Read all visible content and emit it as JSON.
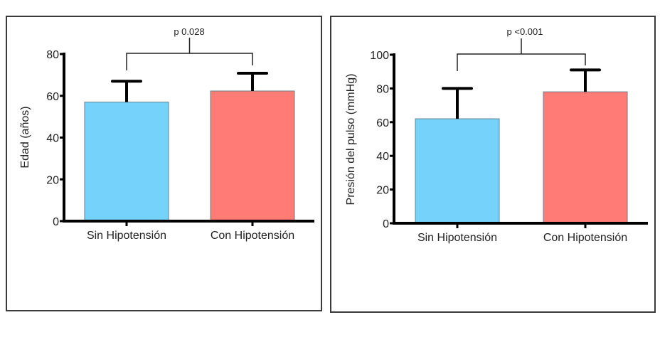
{
  "chart_data": [
    {
      "type": "bar",
      "title": "",
      "xlabel": "",
      "ylabel": "Edad (años)",
      "categories": [
        "Sin Hipotensión",
        "Con Hipotensión"
      ],
      "values": [
        57,
        62.3
      ],
      "error_upper": [
        67,
        70.8
      ],
      "colors": [
        "#75D3FB",
        "#FF7B76"
      ],
      "ylim": [
        0,
        80
      ],
      "yticks": [
        0,
        20,
        40,
        60,
        80
      ],
      "ytick_labels": [
        "0",
        "20",
        "40",
        "60",
        "80"
      ],
      "grid": false,
      "significance": {
        "label": "p 0.028",
        "between": [
          0,
          1
        ]
      }
    },
    {
      "type": "bar",
      "title": "",
      "xlabel": "",
      "ylabel": "Presión del pulso (mmHg)",
      "categories": [
        "Sin Hipotensión",
        "Con Hipotensión"
      ],
      "values": [
        62,
        78
      ],
      "error_upper": [
        80,
        91
      ],
      "colors": [
        "#75D3FB",
        "#FF7B76"
      ],
      "ylim": [
        0,
        100
      ],
      "yticks": [
        0,
        20,
        40,
        60,
        80,
        100
      ],
      "ytick_labels": [
        "0",
        "20",
        "40",
        "60",
        "80",
        "100"
      ],
      "grid": false,
      "significance": {
        "label": "p <0.001",
        "between": [
          0,
          1
        ]
      }
    }
  ]
}
